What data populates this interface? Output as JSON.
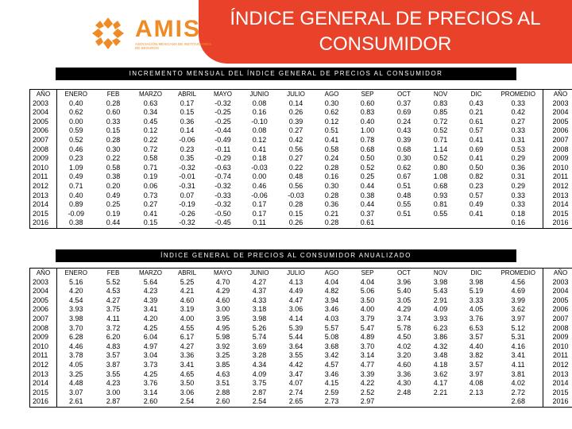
{
  "header": {
    "title_line1": "ÍNDICE GENERAL DE PRECIOS AL",
    "title_line2": "CONSUMIDOR",
    "logo_text": "AMIS",
    "logo_subtext": "ASOCIACIÓN MEXICANA DE INSTITUCIONES DE SEGUROS",
    "brand_color": "#e8432a",
    "logo_color": "#f08a24"
  },
  "table1": {
    "caption": "INCREMENTO MENSUAL DEL ÍNDICE GENERAL DE PRECIOS AL CONSUMIDOR",
    "headers": [
      "AÑO",
      "ENERO",
      "FEB",
      "MARZO",
      "ABRIL",
      "MAYO",
      "JUNIO",
      "JULIO",
      "AGO",
      "SEP",
      "OCT",
      "NOV",
      "DIC",
      "PROMEDIO",
      "AÑO"
    ],
    "rows": [
      [
        "2003",
        "0.40",
        "0.28",
        "0.63",
        "0.17",
        "-0.32",
        "0.08",
        "0.14",
        "0.30",
        "0.60",
        "0.37",
        "0.83",
        "0.43",
        "0.33",
        "2003"
      ],
      [
        "2004",
        "0.62",
        "0.60",
        "0.34",
        "0.15",
        "-0.25",
        "0.16",
        "0.26",
        "0.62",
        "0.83",
        "0.69",
        "0.85",
        "0.21",
        "0.42",
        "2004"
      ],
      [
        "2005",
        "0.00",
        "0.33",
        "0.45",
        "0.36",
        "-0.25",
        "-0.10",
        "0.39",
        "0.12",
        "0.40",
        "0.24",
        "0.72",
        "0.61",
        "0.27",
        "2005"
      ],
      [
        "2006",
        "0.59",
        "0.15",
        "0.12",
        "0.14",
        "-0.44",
        "0.08",
        "0.27",
        "0.51",
        "1.00",
        "0.43",
        "0.52",
        "0.57",
        "0.33",
        "2006"
      ],
      [
        "2007",
        "0.52",
        "0.28",
        "0.22",
        "-0.06",
        "-0.49",
        "0.12",
        "0.42",
        "0.41",
        "0.78",
        "0.39",
        "0.71",
        "0.41",
        "0.31",
        "2007"
      ],
      [
        "2008",
        "0.46",
        "0.30",
        "0.72",
        "0.23",
        "-0.11",
        "0.41",
        "0.56",
        "0.58",
        "0.68",
        "0.68",
        "1.14",
        "0.69",
        "0.53",
        "2008"
      ],
      [
        "2009",
        "0.23",
        "0.22",
        "0.58",
        "0.35",
        "-0.29",
        "0.18",
        "0.27",
        "0.24",
        "0.50",
        "0.30",
        "0.52",
        "0.41",
        "0.29",
        "2009"
      ],
      [
        "2010",
        "1.09",
        "0.58",
        "0.71",
        "-0.32",
        "-0.63",
        "-0.03",
        "0.22",
        "0.28",
        "0.52",
        "0.62",
        "0.80",
        "0.50",
        "0.36",
        "2010"
      ],
      [
        "2011",
        "0.49",
        "0.38",
        "0.19",
        "-0.01",
        "-0.74",
        "0.00",
        "0.48",
        "0.16",
        "0.25",
        "0.67",
        "1.08",
        "0.82",
        "0.31",
        "2011"
      ],
      [
        "2012",
        "0.71",
        "0.20",
        "0.06",
        "-0.31",
        "-0.32",
        "0.46",
        "0.56",
        "0.30",
        "0.44",
        "0.51",
        "0.68",
        "0.23",
        "0.29",
        "2012"
      ],
      [
        "2013",
        "0.40",
        "0.49",
        "0.73",
        "0.07",
        "-0.33",
        "-0.06",
        "-0.03",
        "0.28",
        "0.38",
        "0.48",
        "0.93",
        "0.57",
        "0.33",
        "2013"
      ],
      [
        "2014",
        "0.89",
        "0.25",
        "0.27",
        "-0.19",
        "-0.32",
        "0.17",
        "0.28",
        "0.36",
        "0.44",
        "0.55",
        "0.81",
        "0.49",
        "0.33",
        "2014"
      ],
      [
        "2015",
        "-0.09",
        "0.19",
        "0.41",
        "-0.26",
        "-0.50",
        "0.17",
        "0.15",
        "0.21",
        "0.37",
        "0.51",
        "0.55",
        "0.41",
        "0.18",
        "2015"
      ],
      [
        "2016",
        "0.38",
        "0.44",
        "0.15",
        "-0.32",
        "-0.45",
        "0.11",
        "0.26",
        "0.28",
        "0.61",
        "",
        "",
        "",
        "0.16",
        "2016"
      ]
    ]
  },
  "table2": {
    "caption": "ÍNDICE GENERAL DE PRECIOS AL CONSUMIDOR ANUALIZADO",
    "headers": [
      "AÑO",
      "ENERO",
      "FEB",
      "MARZO",
      "ABRIL",
      "MAYO",
      "JUNIO",
      "JULIO",
      "AGO",
      "SEP",
      "OCT",
      "NOV",
      "DIC",
      "PROMEDIO",
      "AÑO"
    ],
    "rows": [
      [
        "2003",
        "5.16",
        "5.52",
        "5.64",
        "5.25",
        "4.70",
        "4.27",
        "4.13",
        "4.04",
        "4.04",
        "3.96",
        "3.98",
        "3.98",
        "4.56",
        "2003"
      ],
      [
        "2004",
        "4.20",
        "4.53",
        "4.23",
        "4.21",
        "4.29",
        "4.37",
        "4.49",
        "4.82",
        "5.06",
        "5.40",
        "5.43",
        "5.19",
        "4.69",
        "2004"
      ],
      [
        "2005",
        "4.54",
        "4.27",
        "4.39",
        "4.60",
        "4.60",
        "4.33",
        "4.47",
        "3.94",
        "3.50",
        "3.05",
        "2.91",
        "3.33",
        "3.99",
        "2005"
      ],
      [
        "2006",
        "3.93",
        "3.75",
        "3.41",
        "3.19",
        "3.00",
        "3.18",
        "3.06",
        "3.46",
        "4.00",
        "4.29",
        "4.09",
        "4.05",
        "3.62",
        "2006"
      ],
      [
        "2007",
        "3.98",
        "4.11",
        "4.20",
        "4.00",
        "3.95",
        "3.98",
        "4.14",
        "4.03",
        "3.79",
        "3.74",
        "3.93",
        "3.76",
        "3.97",
        "2007"
      ],
      [
        "2008",
        "3.70",
        "3.72",
        "4.25",
        "4.55",
        "4.95",
        "5.26",
        "5.39",
        "5.57",
        "5.47",
        "5.78",
        "6.23",
        "6.53",
        "5.12",
        "2008"
      ],
      [
        "2009",
        "6.28",
        "6.20",
        "6.04",
        "6.17",
        "5.98",
        "5.74",
        "5.44",
        "5.08",
        "4.89",
        "4.50",
        "3.86",
        "3.57",
        "5.31",
        "2009"
      ],
      [
        "2010",
        "4.46",
        "4.83",
        "4.97",
        "4.27",
        "3.92",
        "3.69",
        "3.64",
        "3.68",
        "3.70",
        "4.02",
        "4.32",
        "4.40",
        "4.16",
        "2010"
      ],
      [
        "2011",
        "3.78",
        "3.57",
        "3.04",
        "3.36",
        "3.25",
        "3.28",
        "3.55",
        "3.42",
        "3.14",
        "3.20",
        "3.48",
        "3.82",
        "3.41",
        "2011"
      ],
      [
        "2012",
        "4.05",
        "3.87",
        "3.73",
        "3.41",
        "3.85",
        "4.34",
        "4.42",
        "4.57",
        "4.77",
        "4.60",
        "4.18",
        "3.57",
        "4.11",
        "2012"
      ],
      [
        "2013",
        "3.25",
        "3.55",
        "4.25",
        "4.65",
        "4.63",
        "4.09",
        "3.47",
        "3.46",
        "3.39",
        "3.36",
        "3.62",
        "3.97",
        "3.81",
        "2013"
      ],
      [
        "2014",
        "4.48",
        "4.23",
        "3.76",
        "3.50",
        "3.51",
        "3.75",
        "4.07",
        "4.15",
        "4.22",
        "4.30",
        "4.17",
        "4.08",
        "4.02",
        "2014"
      ],
      [
        "2015",
        "3.07",
        "3.00",
        "3.14",
        "3.06",
        "2.88",
        "2.87",
        "2.74",
        "2.59",
        "2.52",
        "2.48",
        "2.21",
        "2.13",
        "2.72",
        "2015"
      ],
      [
        "2016",
        "2.61",
        "2.87",
        "2.60",
        "2.54",
        "2.60",
        "2.54",
        "2.65",
        "2.73",
        "2.97",
        "",
        "",
        "",
        "2.68",
        "2016"
      ]
    ]
  }
}
